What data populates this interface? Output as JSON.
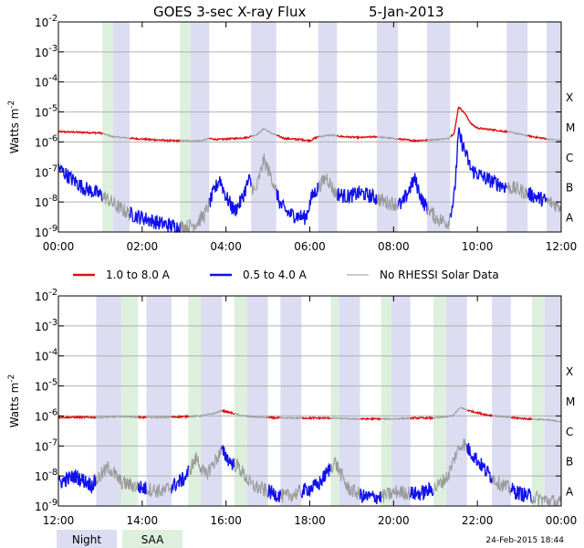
{
  "title": "GOES 3-sec X-ray Flux",
  "date": "5-Jan-2013",
  "ylabel_base": "Watts m",
  "ylabel_exp": "-2",
  "y_tick_labels": [
    "10-9",
    "10-8",
    "10-7",
    "10-6",
    "10-5",
    "10-4",
    "10-3",
    "10-2"
  ],
  "y_tick_base": "10",
  "y_tick_exps": [
    "-9",
    "-8",
    "-7",
    "-6",
    "-5",
    "-4",
    "-3",
    "-2"
  ],
  "class_labels": [
    "A",
    "B",
    "C",
    "M",
    "X"
  ],
  "legend": [
    {
      "name": "1.0 to 8.0 A",
      "color": "#dd1111"
    },
    {
      "name": "0.5 to 4.0 A",
      "color": "#1111ee"
    },
    {
      "name": "No RHESSI Solar Data",
      "color": "#999999"
    }
  ],
  "key": {
    "night": "Night",
    "saa": "SAA"
  },
  "colors": {
    "night": "#dcdcf2",
    "saa": "#ddf0dd",
    "long": "#dd1111",
    "short": "#1111ee",
    "nodata": "#999999",
    "grid": "#b0b0b0"
  },
  "timestamp": "24-Feb-2015 18:44",
  "chart_data": [
    {
      "type": "line",
      "title": "GOES 3-sec X-ray Flux 5-Jan-2013",
      "xlabel": "",
      "ylabel": "Watts m-2",
      "x_range_hours": [
        0,
        12
      ],
      "x_tick_labels": [
        "00:00",
        "02:00",
        "04:00",
        "06:00",
        "08:00",
        "10:00",
        "12:00"
      ],
      "ylim": [
        1e-09,
        0.01
      ],
      "yscale": "log",
      "night_bands_hours": [
        [
          1.3,
          1.7
        ],
        [
          3.15,
          3.6
        ],
        [
          4.6,
          5.2
        ],
        [
          6.2,
          6.65
        ],
        [
          7.6,
          8.1
        ],
        [
          8.8,
          9.35
        ],
        [
          10.7,
          11.2
        ],
        [
          11.65,
          12
        ]
      ],
      "saa_bands_hours": [
        [
          1.05,
          1.3
        ],
        [
          2.9,
          3.15
        ]
      ],
      "series": [
        {
          "name": "1.0 to 8.0 A",
          "color": "#dd1111",
          "points": [
            [
              0,
              2.2e-06
            ],
            [
              0.5,
              2.1e-06
            ],
            [
              1.0,
              2e-06
            ],
            [
              1.3,
              1.5e-06
            ],
            [
              1.8,
              1.3e-06
            ],
            [
              2.2,
              1.2e-06
            ],
            [
              2.7,
              1.1e-06
            ],
            [
              3.1,
              1.1e-06
            ],
            [
              3.4,
              1.1e-06
            ],
            [
              3.6,
              1.3e-06
            ],
            [
              3.8,
              1.2e-06
            ],
            [
              4.2,
              1.3e-06
            ],
            [
              4.5,
              1.4e-06
            ],
            [
              4.75,
              1.8e-06
            ],
            [
              4.9,
              2.8e-06
            ],
            [
              5.1,
              1.9e-06
            ],
            [
              5.4,
              1.3e-06
            ],
            [
              5.8,
              1.2e-06
            ],
            [
              6.0,
              1.1e-06
            ],
            [
              6.2,
              1.5e-06
            ],
            [
              6.5,
              1.7e-06
            ],
            [
              6.8,
              1.5e-06
            ],
            [
              7.2,
              1.4e-06
            ],
            [
              7.6,
              1.5e-06
            ],
            [
              8.0,
              1.3e-06
            ],
            [
              8.5,
              1.1e-06
            ],
            [
              9.0,
              1.2e-06
            ],
            [
              9.3,
              1.3e-06
            ],
            [
              9.45,
              2e-06
            ],
            [
              9.55,
              1.5e-05
            ],
            [
              9.7,
              9e-06
            ],
            [
              9.85,
              4e-06
            ],
            [
              10.0,
              2.9e-06
            ],
            [
              10.4,
              2.5e-06
            ],
            [
              10.8,
              2.1e-06
            ],
            [
              11.2,
              1.6e-06
            ],
            [
              11.6,
              1.3e-06
            ],
            [
              12,
              1.1e-06
            ]
          ]
        },
        {
          "name": "0.5 to 4.0 A",
          "color": "#1111ee",
          "points": [
            [
              0,
              1.4e-07
            ],
            [
              0.3,
              6e-08
            ],
            [
              0.6,
              3e-08
            ],
            [
              0.9,
              2e-08
            ],
            [
              1.1,
              1.5e-08
            ],
            [
              1.4,
              7e-09
            ],
            [
              1.7,
              4e-09
            ],
            [
              2.0,
              3e-09
            ],
            [
              2.4,
              2e-09
            ],
            [
              2.8,
              1.5e-09
            ],
            [
              3.1,
              1.5e-09
            ],
            [
              3.3,
              2e-09
            ],
            [
              3.5,
              4e-09
            ],
            [
              3.7,
              2e-08
            ],
            [
              3.85,
              6e-08
            ],
            [
              4.0,
              1.5e-08
            ],
            [
              4.2,
              5e-09
            ],
            [
              4.35,
              1e-08
            ],
            [
              4.55,
              5.5e-08
            ],
            [
              4.7,
              2e-08
            ],
            [
              4.9,
              2.5e-07
            ],
            [
              5.1,
              6e-08
            ],
            [
              5.3,
              8e-09
            ],
            [
              5.5,
              4e-09
            ],
            [
              5.9,
              3e-09
            ],
            [
              6.05,
              1.5e-08
            ],
            [
              6.2,
              3e-08
            ],
            [
              6.4,
              7e-08
            ],
            [
              6.6,
              2e-08
            ],
            [
              6.9,
              1.5e-08
            ],
            [
              7.2,
              2e-08
            ],
            [
              7.5,
              1.5e-08
            ],
            [
              7.8,
              1e-08
            ],
            [
              8.2,
              8e-09
            ],
            [
              8.5,
              6e-08
            ],
            [
              8.7,
              1e-08
            ],
            [
              9.0,
              3e-09
            ],
            [
              9.3,
              2e-09
            ],
            [
              9.45,
              1.5e-08
            ],
            [
              9.55,
              2e-06
            ],
            [
              9.7,
              5e-07
            ],
            [
              9.85,
              1.2e-07
            ],
            [
              10.2,
              6e-08
            ],
            [
              10.6,
              3.5e-08
            ],
            [
              11.0,
              2.5e-08
            ],
            [
              11.4,
              1.5e-08
            ],
            [
              11.7,
              1e-08
            ],
            [
              12,
              7e-09
            ]
          ]
        }
      ]
    },
    {
      "type": "line",
      "title": "",
      "xlabel": "",
      "ylabel": "Watts m-2",
      "x_range_hours": [
        12,
        24
      ],
      "x_tick_labels": [
        "12:00",
        "14:00",
        "16:00",
        "18:00",
        "20:00",
        "22:00",
        "00:00"
      ],
      "ylim": [
        1e-09,
        0.01
      ],
      "yscale": "log",
      "night_bands_hours": [
        [
          12.9,
          13.5
        ],
        [
          14.1,
          14.7
        ],
        [
          15.4,
          15.9
        ],
        [
          16.5,
          17.0
        ],
        [
          17.3,
          17.8
        ],
        [
          18.7,
          19.2
        ],
        [
          19.95,
          20.4
        ],
        [
          21.25,
          21.75
        ],
        [
          22.35,
          22.8
        ],
        [
          23.6,
          24
        ]
      ],
      "saa_bands_hours": [
        [
          13.5,
          13.9
        ],
        [
          15.1,
          15.4
        ],
        [
          16.2,
          16.5
        ],
        [
          18.5,
          18.7
        ],
        [
          19.7,
          19.95
        ],
        [
          20.95,
          21.25
        ],
        [
          23.3,
          23.6
        ]
      ],
      "series": [
        {
          "name": "1.0 to 8.0 A",
          "color": "#dd1111",
          "points": [
            [
              12,
              9e-07
            ],
            [
              12.5,
              9e-07
            ],
            [
              13.0,
              9e-07
            ],
            [
              13.5,
              9.5e-07
            ],
            [
              14.0,
              9e-07
            ],
            [
              14.5,
              9e-07
            ],
            [
              15.0,
              9.5e-07
            ],
            [
              15.4,
              1e-06
            ],
            [
              15.7,
              1.2e-06
            ],
            [
              15.9,
              1.5e-06
            ],
            [
              16.1,
              1.3e-06
            ],
            [
              16.4,
              1e-06
            ],
            [
              16.8,
              9e-07
            ],
            [
              17.3,
              8.5e-07
            ],
            [
              18.0,
              8.5e-07
            ],
            [
              18.5,
              8.5e-07
            ],
            [
              19.0,
              8e-07
            ],
            [
              19.5,
              8e-07
            ],
            [
              20.0,
              8e-07
            ],
            [
              20.5,
              8.5e-07
            ],
            [
              21.0,
              8.5e-07
            ],
            [
              21.4,
              1e-06
            ],
            [
              21.6,
              1.9e-06
            ],
            [
              21.8,
              1.5e-06
            ],
            [
              22.2,
              1.1e-06
            ],
            [
              22.7,
              9e-07
            ],
            [
              23.2,
              8e-07
            ],
            [
              23.6,
              7.5e-07
            ],
            [
              24,
              6.5e-07
            ]
          ]
        },
        {
          "name": "0.5 to 4.0 A",
          "color": "#1111ee",
          "points": [
            [
              12,
              6e-09
            ],
            [
              12.4,
              1e-08
            ],
            [
              12.8,
              5e-09
            ],
            [
              13.2,
              2e-08
            ],
            [
              13.5,
              6e-09
            ],
            [
              14.0,
              4e-09
            ],
            [
              14.5,
              3e-09
            ],
            [
              15.0,
              8e-09
            ],
            [
              15.3,
              4e-08
            ],
            [
              15.5,
              1e-08
            ],
            [
              15.9,
              7e-08
            ],
            [
              16.1,
              3e-08
            ],
            [
              16.3,
              2e-08
            ],
            [
              16.6,
              5e-09
            ],
            [
              17.0,
              3e-09
            ],
            [
              17.4,
              2e-09
            ],
            [
              17.8,
              3e-09
            ],
            [
              18.2,
              5e-09
            ],
            [
              18.6,
              3e-08
            ],
            [
              18.9,
              4e-09
            ],
            [
              19.3,
              2e-09
            ],
            [
              19.7,
              2e-09
            ],
            [
              20.1,
              3e-09
            ],
            [
              20.6,
              2.5e-09
            ],
            [
              21.0,
              4e-09
            ],
            [
              21.3,
              1e-08
            ],
            [
              21.5,
              6e-08
            ],
            [
              21.65,
              1.3e-07
            ],
            [
              21.9,
              5e-08
            ],
            [
              22.2,
              1.5e-08
            ],
            [
              22.5,
              6e-09
            ],
            [
              22.9,
              3e-09
            ],
            [
              23.3,
              2e-09
            ],
            [
              23.7,
              1.5e-09
            ],
            [
              24,
              1.2e-09
            ]
          ]
        }
      ]
    }
  ]
}
